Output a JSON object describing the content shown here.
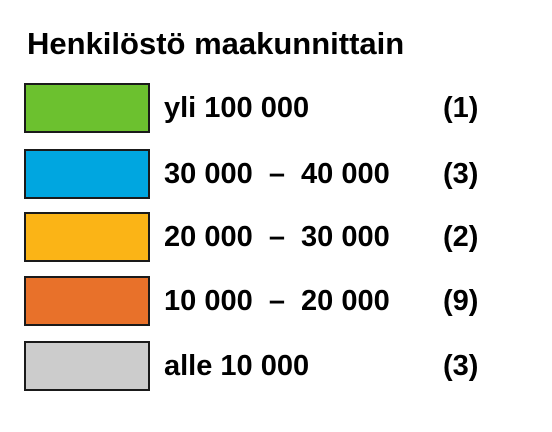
{
  "legend": {
    "title": "Henkilöstö maakunnittain",
    "items": [
      {
        "label": "yli 100 000",
        "count": "(1)",
        "color": "#6cc12f"
      },
      {
        "label": "30 000  –  40 000",
        "count": "(3)",
        "color": "#00a6e0"
      },
      {
        "label": "20 000  –  30 000",
        "count": "(2)",
        "color": "#fbb416"
      },
      {
        "label": "10 000  –  20 000",
        "count": "(9)",
        "color": "#e8712a"
      },
      {
        "label": "alle 10 000",
        "count": "(3)",
        "color": "#cccccc"
      }
    ]
  }
}
